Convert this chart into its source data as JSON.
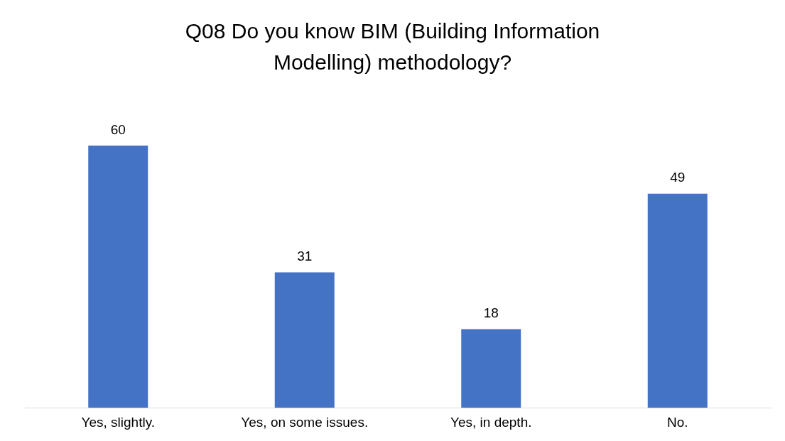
{
  "chart_data": {
    "type": "bar",
    "title": "Q08 Do you know BIM (Building Information Modelling) methodology?",
    "categories": [
      "Yes, slightly.",
      "Yes, on some issues.",
      "Yes, in depth.",
      "No."
    ],
    "values": [
      60,
      31,
      18,
      49
    ],
    "color": "#4472c4",
    "data_labels": true,
    "grid": false,
    "legend": false
  }
}
